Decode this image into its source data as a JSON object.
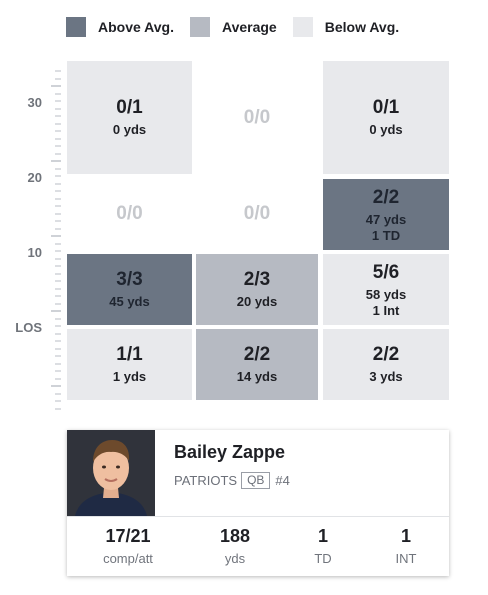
{
  "legend": {
    "items": [
      {
        "label": "Above Avg.",
        "color": "#6b7583"
      },
      {
        "label": "Average",
        "color": "#b6bac2"
      },
      {
        "label": "Below Avg.",
        "color": "#e8e9ec"
      }
    ]
  },
  "yaxis": {
    "labels": [
      "30",
      "20",
      "10",
      "LOS"
    ]
  },
  "zones": [
    {
      "main": "0/1",
      "sub": "0 yds",
      "sub2": "",
      "level": "below"
    },
    {
      "main": "0/0",
      "sub": "",
      "sub2": "",
      "level": "none"
    },
    {
      "main": "0/1",
      "sub": "0 yds",
      "sub2": "",
      "level": "below"
    },
    {
      "main": "0/0",
      "sub": "",
      "sub2": "",
      "level": "none"
    },
    {
      "main": "0/0",
      "sub": "",
      "sub2": "",
      "level": "none"
    },
    {
      "main": "2/2",
      "sub": "47 yds",
      "sub2": "1 TD",
      "level": "above"
    },
    {
      "main": "3/3",
      "sub": "45 yds",
      "sub2": "",
      "level": "above"
    },
    {
      "main": "2/3",
      "sub": "20 yds",
      "sub2": "",
      "level": "average"
    },
    {
      "main": "5/6",
      "sub": "58 yds",
      "sub2": "1 Int",
      "level": "below"
    },
    {
      "main": "1/1",
      "sub": "1 yds",
      "sub2": "",
      "level": "below"
    },
    {
      "main": "2/2",
      "sub": "14 yds",
      "sub2": "",
      "level": "average"
    },
    {
      "main": "2/2",
      "sub": "3 yds",
      "sub2": "",
      "level": "below"
    }
  ],
  "player": {
    "name": "Bailey Zappe",
    "team": "PATRIOTS",
    "position": "QB",
    "number": "#4",
    "stats": [
      {
        "value": "17/21",
        "label": "comp/att"
      },
      {
        "value": "188",
        "label": "yds"
      },
      {
        "value": "1",
        "label": "TD"
      },
      {
        "value": "1",
        "label": "INT"
      }
    ]
  }
}
